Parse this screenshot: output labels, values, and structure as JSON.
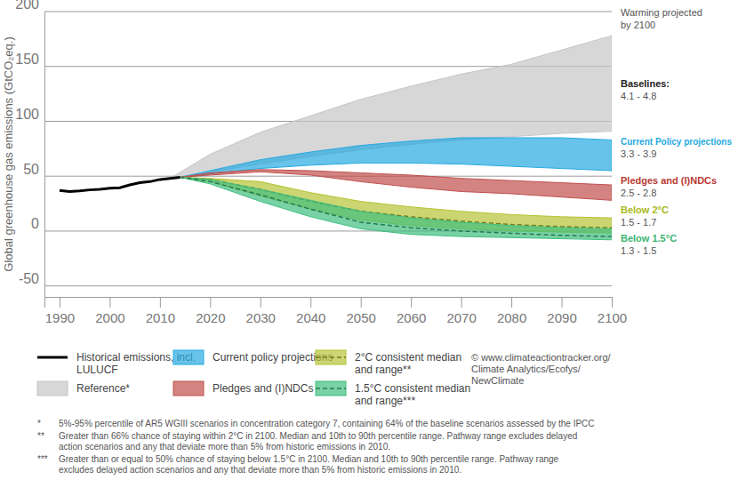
{
  "chart_data": {
    "type": "area",
    "y_label": "Global greenhouse gas emissions (GtCO₂eq.)",
    "xlim": [
      1987,
      2100
    ],
    "xticks": [
      1990,
      2000,
      2010,
      2020,
      2030,
      2040,
      2050,
      2060,
      2070,
      2080,
      2090,
      2100
    ],
    "ylim": [
      -60,
      200
    ],
    "yticks": [
      -50,
      0,
      50,
      100,
      150,
      200
    ],
    "grid": true,
    "series": [
      {
        "name": "Historical emissions, incl. LULUCF",
        "type": "line",
        "color": "#000000",
        "x": [
          1990,
          1992,
          1994,
          1996,
          1998,
          2000,
          2002,
          2004,
          2006,
          2008,
          2010,
          2012,
          2014
        ],
        "values": [
          37,
          36,
          36.5,
          37.5,
          38,
          39,
          39.5,
          42,
          44,
          45,
          47,
          48,
          49
        ]
      },
      {
        "name": "Reference*",
        "type": "area",
        "color": "#c6c6c6",
        "x": [
          2012,
          2020,
          2030,
          2040,
          2050,
          2060,
          2070,
          2080,
          2090,
          2100
        ],
        "low": [
          48,
          54,
          61,
          68,
          74,
          79,
          83,
          86,
          89,
          91
        ],
        "high": [
          48,
          70,
          90,
          105,
          120,
          132,
          143,
          152,
          165,
          178
        ]
      },
      {
        "name": "Current policy projections",
        "type": "area",
        "color": "#27a9e1",
        "x": [
          2014,
          2020,
          2030,
          2040,
          2050,
          2060,
          2070,
          2080,
          2090,
          2100
        ],
        "low": [
          49,
          52,
          57,
          60,
          62,
          62,
          61,
          59,
          57,
          55
        ],
        "high": [
          49,
          55,
          65,
          72,
          78,
          82,
          85,
          85,
          85,
          83
        ]
      },
      {
        "name": "Pledges and (I)NDCs",
        "type": "area",
        "color": "#c0504d",
        "x": [
          2014,
          2020,
          2030,
          2040,
          2050,
          2060,
          2070,
          2080,
          2090,
          2100
        ],
        "low": [
          49,
          51,
          54,
          51,
          45,
          40,
          36,
          34,
          31,
          28
        ],
        "high": [
          49,
          53,
          56,
          55,
          53,
          51,
          48,
          46,
          44,
          42
        ]
      },
      {
        "name": "2°C consistent median and range**",
        "type": "area",
        "color": "#b5c334",
        "line_style": "dashed",
        "x": [
          2014,
          2020,
          2030,
          2040,
          2050,
          2060,
          2070,
          2080,
          2090,
          2100
        ],
        "low": [
          49,
          45,
          32,
          20,
          10,
          5,
          2,
          0,
          -1,
          -2
        ],
        "high": [
          49,
          48,
          45,
          35,
          27,
          22,
          18,
          15,
          13,
          12
        ],
        "values": [
          49,
          47,
          38,
          27,
          18,
          13,
          9,
          6,
          4,
          3
        ]
      },
      {
        "name": "1.5°C consistent median and range***",
        "type": "area",
        "color": "#3fbf7f",
        "line_style": "dashed",
        "x": [
          2014,
          2020,
          2030,
          2040,
          2050,
          2060,
          2070,
          2080,
          2090,
          2100
        ],
        "low": [
          49,
          43,
          27,
          13,
          2,
          -3,
          -5,
          -6,
          -7,
          -8
        ],
        "high": [
          49,
          47,
          38,
          28,
          18,
          12,
          8,
          5,
          3,
          2
        ],
        "values": [
          49,
          45,
          33,
          20,
          8,
          3,
          0,
          -2,
          -4,
          -5
        ]
      }
    ],
    "annotations": [
      {
        "lines": [
          "Warming projected",
          "by 2100"
        ],
        "color": "#555555"
      },
      {
        "lines": [
          "Baselines:",
          "4.1 - 4.8"
        ],
        "color": "#222222"
      },
      {
        "lines": [
          "Current Policy projections",
          "3.3 - 3.9"
        ],
        "color": "#27a9e1"
      },
      {
        "lines": [
          "Pledges and (I)NDCs",
          "2.5 - 2.8"
        ],
        "color": "#b93a32"
      },
      {
        "lines": [
          "Below 2°C",
          "1.5 - 1.7"
        ],
        "color": "#a9b820"
      },
      {
        "lines": [
          "Below 1.5°C",
          "1.3 - 1.5"
        ],
        "color": "#3cb371"
      }
    ],
    "source": [
      "© www.climateactiontracker.org/",
      "Climate Analytics/Ecofys/",
      "NewClimate"
    ],
    "notes": [
      {
        "mark": "*",
        "lines": [
          "5%-95% percentile of AR5 WGIII scenarios in concentration category 7, containing 64% of the baseline scenarios assessed by the IPCC"
        ]
      },
      {
        "mark": "**",
        "lines": [
          "Greater than 66% chance of staying within 2°C in 2100. Median and 10th to 90th percentile range. Pathway range excludes delayed",
          "action scenarios and any that deviate more than 5% from historic emissions in 2010."
        ]
      },
      {
        "mark": "***",
        "lines": [
          "Greater than or equal to 50% chance of staying below 1.5°C in 2100. Median and 10th to 90th percentile range. Pathway range",
          "excludes delayed action scenarios and any that deviate more than 5% from historic emissions in 2010."
        ]
      }
    ]
  }
}
